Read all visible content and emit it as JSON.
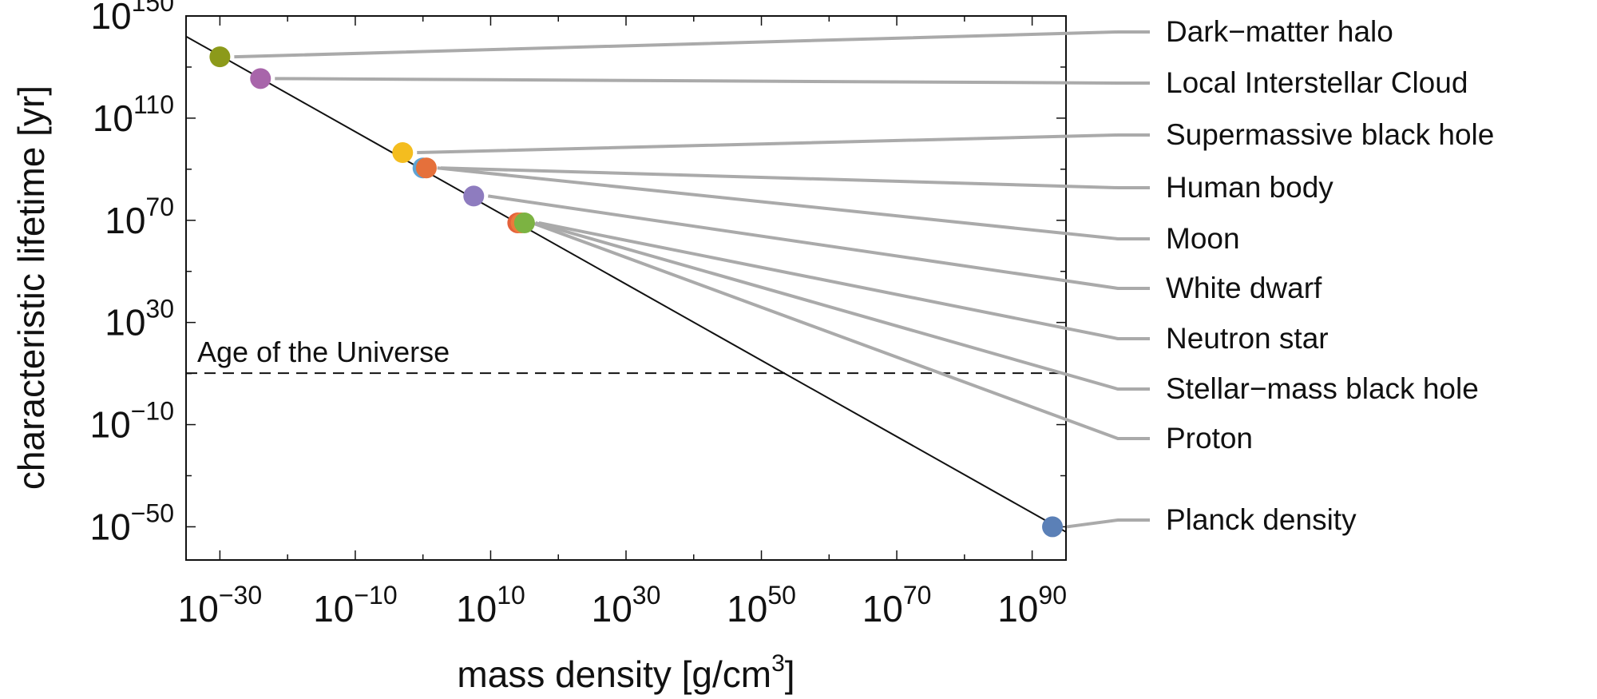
{
  "chart_data": {
    "type": "scatter",
    "xlabel": "mass density [g/cm",
    "xlabel_sup": "3",
    "xlabel_end": "]",
    "ylabel": "characteristic lifetime [yr]",
    "x_scale": "log10",
    "y_scale": "log10",
    "xlim_exp": [
      -35,
      95
    ],
    "ylim_exp": [
      -63,
      150
    ],
    "x_ticks": [
      {
        "base": "10",
        "exp": "−30",
        "value": -30
      },
      {
        "base": "10",
        "exp": "−10",
        "value": -10
      },
      {
        "base": "10",
        "exp": "10",
        "value": 10
      },
      {
        "base": "10",
        "exp": "30",
        "value": 30
      },
      {
        "base": "10",
        "exp": "50",
        "value": 50
      },
      {
        "base": "10",
        "exp": "70",
        "value": 70
      },
      {
        "base": "10",
        "exp": "90",
        "value": 90
      }
    ],
    "y_ticks": [
      {
        "base": "10",
        "exp": "150",
        "value": 150
      },
      {
        "base": "10",
        "exp": "110",
        "value": 110
      },
      {
        "base": "10",
        "exp": "70",
        "value": 70
      },
      {
        "base": "10",
        "exp": "30",
        "value": 30
      },
      {
        "base": "10",
        "exp": "−10",
        "value": -10
      },
      {
        "base": "10",
        "exp": "−50",
        "value": -50
      }
    ],
    "trend_line": {
      "x1": -35,
      "y1": 142,
      "x2": 95,
      "y2": -52
    },
    "reference_line": {
      "label": "Age of the Universe",
      "y": 10.14,
      "style": "dashed"
    },
    "points": [
      {
        "name": "Dark−matter halo",
        "x": -30,
        "y": 134,
        "color": "#8c9a1a"
      },
      {
        "name": "Local Interstellar Cloud",
        "x": -24,
        "y": 125.5,
        "color": "#a865aa"
      },
      {
        "name": "Supermassive black hole",
        "x": -3,
        "y": 96.5,
        "color": "#f4bd1f"
      },
      {
        "name": "Human body",
        "x": 0.5,
        "y": 90.5,
        "color": "#e5703b"
      },
      {
        "name": "Moon",
        "x": 0,
        "y": 90.5,
        "color": "#5fa3d3"
      },
      {
        "name": "White dwarf",
        "x": 7.5,
        "y": 79.5,
        "color": "#8e7cbf"
      },
      {
        "name": "Neutron star",
        "x": 15,
        "y": 69,
        "color": "#7cb342"
      },
      {
        "name": "Stellar−mass black hole",
        "x": 14.5,
        "y": 69,
        "color": "#ec7a3c"
      },
      {
        "name": "Proton",
        "x": 14,
        "y": 69,
        "color": "#e4613b"
      },
      {
        "name": "Planck density",
        "x": 93,
        "y": -50,
        "color": "#5b80b7"
      }
    ]
  }
}
